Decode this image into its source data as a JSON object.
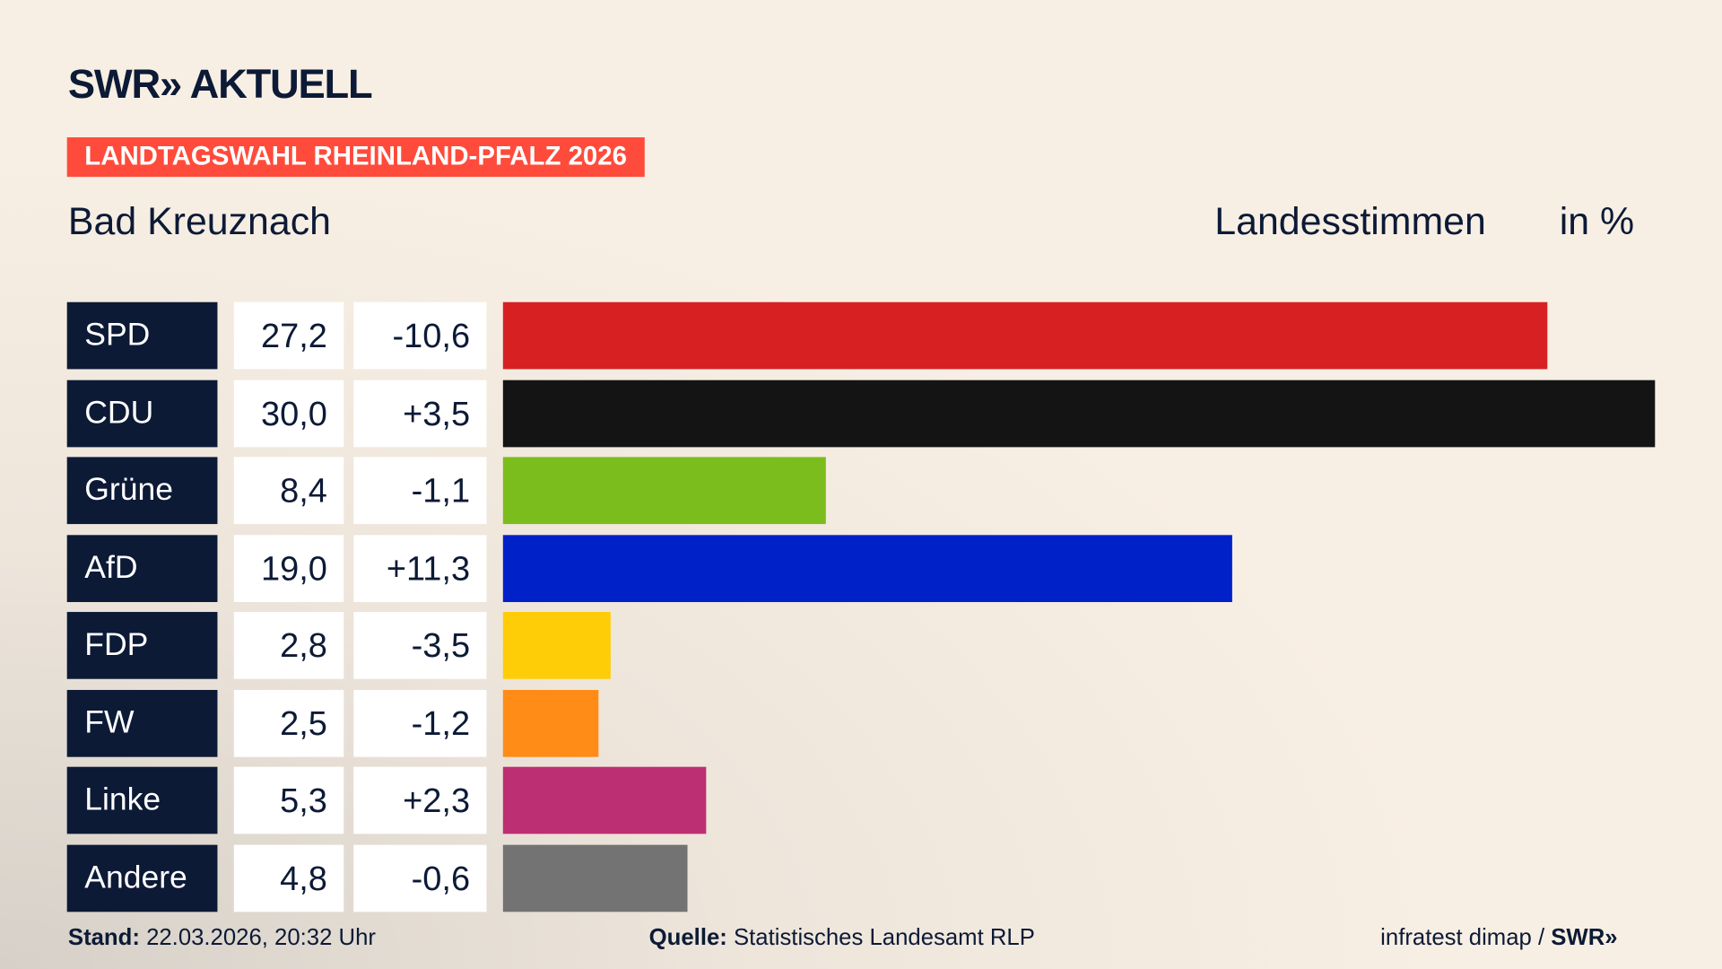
{
  "header": {
    "logo": "SWR» AKTUELL",
    "badge": "LANDTAGSWAHL RHEINLAND-PFALZ 2026",
    "region": "Bad Kreuznach",
    "measure": "Landesstimmen",
    "unit": "in %"
  },
  "chart_data": {
    "type": "bar",
    "orientation": "horizontal",
    "xlim": [
      0,
      30
    ],
    "categories": [
      "SPD",
      "CDU",
      "Grüne",
      "AfD",
      "FDP",
      "FW",
      "Linke",
      "Andere"
    ],
    "values": [
      27.2,
      30.0,
      8.4,
      19.0,
      2.8,
      2.5,
      5.3,
      4.8
    ],
    "value_labels": [
      "27,2",
      "30,0",
      "8,4",
      "19,0",
      "2,8",
      "2,5",
      "5,3",
      "4,8"
    ],
    "diff_labels": [
      "-10,6",
      "+3,5",
      "-1,1",
      "+11,3",
      "-3,5",
      "-1,2",
      "+2,3",
      "-0,6"
    ],
    "colors": [
      "#d72022",
      "#141414",
      "#7bbd1c",
      "#0021c8",
      "#ffcc08",
      "#ff8c17",
      "#bc2f72",
      "#737373"
    ]
  },
  "footer": {
    "stand_label": "Stand:",
    "stand": "22.03.2026, 20:32 Uhr",
    "source_label": "Quelle:",
    "source": "Statistisches Landesamt RLP",
    "credit": "infratest dimap / ",
    "credit_logo": "SWR»"
  }
}
